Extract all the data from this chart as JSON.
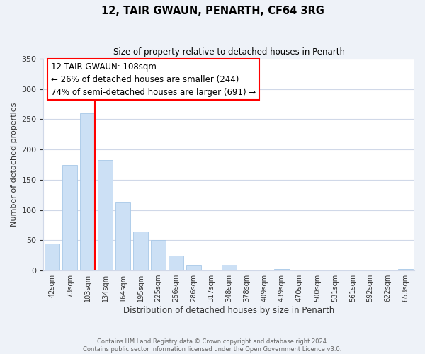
{
  "title": "12, TAIR GWAUN, PENARTH, CF64 3RG",
  "subtitle": "Size of property relative to detached houses in Penarth",
  "xlabel": "Distribution of detached houses by size in Penarth",
  "ylabel": "Number of detached properties",
  "bar_labels": [
    "42sqm",
    "73sqm",
    "103sqm",
    "134sqm",
    "164sqm",
    "195sqm",
    "225sqm",
    "256sqm",
    "286sqm",
    "317sqm",
    "348sqm",
    "378sqm",
    "409sqm",
    "439sqm",
    "470sqm",
    "500sqm",
    "531sqm",
    "561sqm",
    "592sqm",
    "622sqm",
    "653sqm"
  ],
  "bar_values": [
    45,
    175,
    260,
    183,
    113,
    65,
    50,
    25,
    8,
    0,
    9,
    0,
    0,
    2,
    0,
    0,
    0,
    0,
    0,
    0,
    2
  ],
  "bar_color": "#cce0f5",
  "bar_edge_color": "#a8c8e8",
  "vline_x_index": 2,
  "vline_color": "red",
  "ylim": [
    0,
    350
  ],
  "yticks": [
    0,
    50,
    100,
    150,
    200,
    250,
    300,
    350
  ],
  "annotation_title": "12 TAIR GWAUN: 108sqm",
  "annotation_line1": "← 26% of detached houses are smaller (244)",
  "annotation_line2": "74% of semi-detached houses are larger (691) →",
  "annotation_box_color": "white",
  "annotation_box_edge": "red",
  "footer_line1": "Contains HM Land Registry data © Crown copyright and database right 2024.",
  "footer_line2": "Contains public sector information licensed under the Open Government Licence v3.0.",
  "bg_color": "#eef2f8",
  "plot_bg_color": "white",
  "grid_color": "#d0d8e8"
}
